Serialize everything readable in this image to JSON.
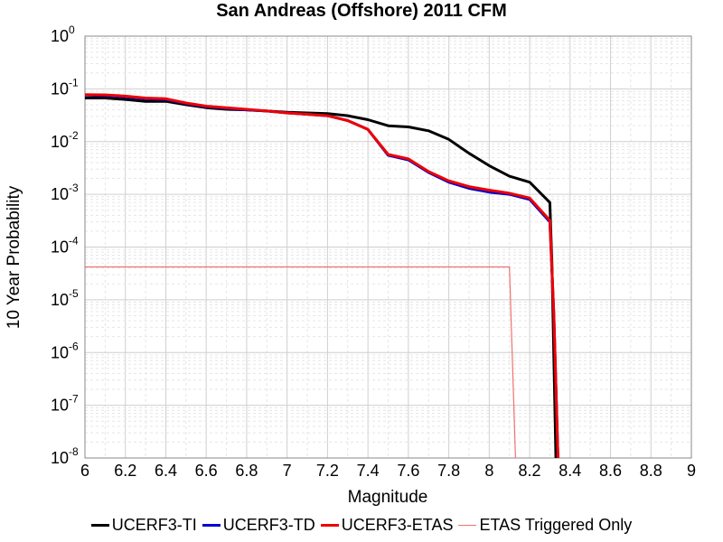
{
  "chart_data": {
    "type": "line",
    "title": "San Andreas (Offshore) 2011 CFM",
    "xlabel": "Magnitude",
    "ylabel": "10 Year Probability",
    "xlim": [
      6,
      9
    ],
    "ylim": [
      1e-08,
      1
    ],
    "yscale": "log",
    "grid": true,
    "legend_position": "bottom",
    "x_ticks": [
      "6",
      "6.2",
      "6.4",
      "6.6",
      "6.8",
      "7",
      "7.2",
      "7.4",
      "7.6",
      "7.8",
      "8",
      "8.2",
      "8.4",
      "8.6",
      "8.8",
      "9"
    ],
    "y_ticks": [
      {
        "base": "10",
        "exp": "0"
      },
      {
        "base": "10",
        "exp": "-1"
      },
      {
        "base": "10",
        "exp": "-2"
      },
      {
        "base": "10",
        "exp": "-3"
      },
      {
        "base": "10",
        "exp": "-4"
      },
      {
        "base": "10",
        "exp": "-5"
      },
      {
        "base": "10",
        "exp": "-6"
      },
      {
        "base": "10",
        "exp": "-7"
      },
      {
        "base": "10",
        "exp": "-8"
      }
    ],
    "series": [
      {
        "name": "UCERF3-TI",
        "color": "#000000",
        "x": [
          6.0,
          6.1,
          6.2,
          6.3,
          6.4,
          6.5,
          6.6,
          6.7,
          6.8,
          6.9,
          7.0,
          7.1,
          7.2,
          7.3,
          7.4,
          7.5,
          7.6,
          7.7,
          7.8,
          7.9,
          8.0,
          8.1,
          8.2,
          8.3,
          8.31,
          8.33
        ],
        "y": [
          0.067,
          0.067,
          0.063,
          0.058,
          0.058,
          0.05,
          0.044,
          0.041,
          0.04,
          0.038,
          0.036,
          0.035,
          0.034,
          0.031,
          0.026,
          0.02,
          0.019,
          0.016,
          0.011,
          0.006,
          0.0035,
          0.0022,
          0.0017,
          0.0007,
          5e-05,
          1e-08
        ]
      },
      {
        "name": "UCERF3-TD",
        "color": "#0000cc",
        "x": [
          6.0,
          6.1,
          6.2,
          6.3,
          6.4,
          6.5,
          6.6,
          6.7,
          6.8,
          6.9,
          7.0,
          7.1,
          7.2,
          7.3,
          7.4,
          7.5,
          7.6,
          7.7,
          7.8,
          7.9,
          8.0,
          8.1,
          8.2,
          8.3,
          8.32,
          8.34
        ],
        "y": [
          0.076,
          0.075,
          0.071,
          0.065,
          0.063,
          0.053,
          0.046,
          0.043,
          0.04,
          0.038,
          0.035,
          0.033,
          0.031,
          0.025,
          0.017,
          0.0055,
          0.0045,
          0.0026,
          0.0017,
          0.0013,
          0.0011,
          0.001,
          0.0008,
          0.0003,
          5e-06,
          1e-08
        ]
      },
      {
        "name": "UCERF3-ETAS",
        "color": "#ee0000",
        "x": [
          6.0,
          6.1,
          6.2,
          6.3,
          6.4,
          6.5,
          6.6,
          6.7,
          6.8,
          6.9,
          7.0,
          7.1,
          7.2,
          7.3,
          7.4,
          7.5,
          7.6,
          7.7,
          7.8,
          7.9,
          8.0,
          8.1,
          8.2,
          8.3,
          8.32,
          8.34
        ],
        "y": [
          0.078,
          0.077,
          0.073,
          0.067,
          0.065,
          0.054,
          0.047,
          0.044,
          0.041,
          0.038,
          0.035,
          0.033,
          0.031,
          0.025,
          0.017,
          0.0057,
          0.0047,
          0.0027,
          0.0018,
          0.0014,
          0.0012,
          0.00105,
          0.00085,
          0.00032,
          5e-06,
          1e-08
        ]
      },
      {
        "name": "ETAS Triggered Only",
        "color": "#f07070",
        "x": [
          6.0,
          8.1,
          8.13
        ],
        "y": [
          4.2e-05,
          4.2e-05,
          1e-08
        ]
      }
    ]
  }
}
